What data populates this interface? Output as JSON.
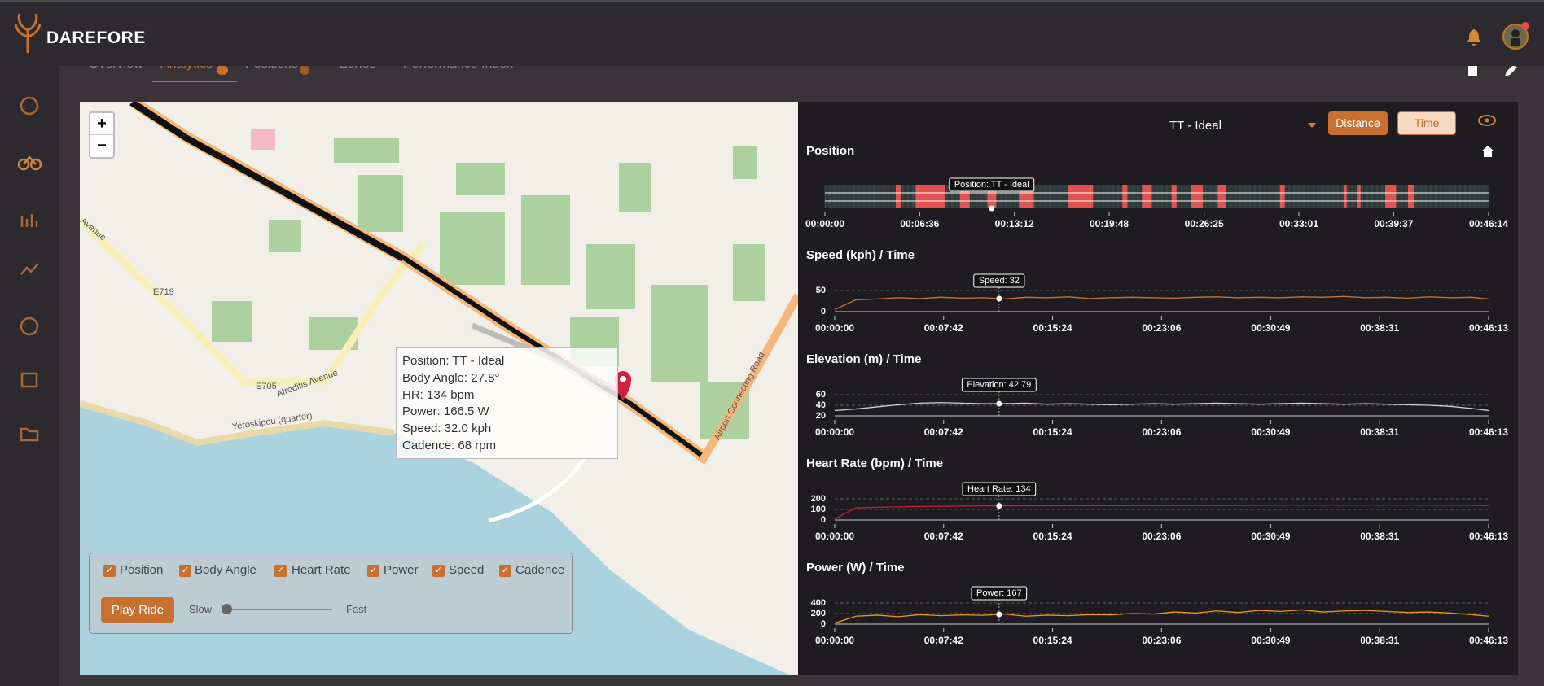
{
  "header": {
    "brand": "DAREFORE"
  },
  "tabs": [
    "Overview",
    "Analytics",
    "Positions",
    "Zones",
    "Performance Index"
  ],
  "map": {
    "zoom_in": "+",
    "zoom_out": "−",
    "labels": [
      "E719",
      "E705",
      "Afroditis Avenue",
      "Airport Connecting Road",
      "Avenue",
      "Yeroskipou (quarter)"
    ],
    "popup": [
      "Position: TT - Ideal",
      "Body Angle: 27.8°",
      "HR: 134 bpm",
      "Power: 166.5 W",
      "Speed: 32.0 kph",
      "Cadence: 68 rpm"
    ],
    "layers": [
      "Position",
      "Body Angle",
      "Heart Rate",
      "Power",
      "Speed",
      "Cadence"
    ],
    "play_button": "Play Ride",
    "speed_min": "Slow",
    "speed_max": "Fast"
  },
  "controls": {
    "dropdown": "TT - Ideal",
    "buttons": [
      "Distance",
      "Time"
    ]
  },
  "chart_data": [
    {
      "type": "timeline",
      "title": "Position",
      "color": "#e35252",
      "tooltip": "Position: TT - Ideal",
      "cursor": 697,
      "xlim": [
        0,
        2774
      ],
      "xticks": [
        {
          "value": 0,
          "label": "00:00:00"
        },
        {
          "value": 396,
          "label": "00:06:36"
        },
        {
          "value": 792,
          "label": "00:13:12"
        },
        {
          "value": 1188,
          "label": "00:19:48"
        },
        {
          "value": 1585,
          "label": "00:26:25"
        },
        {
          "value": 1981,
          "label": "00:33:01"
        },
        {
          "value": 2377,
          "label": "00:39:37"
        },
        {
          "value": 2774,
          "label": "00:46:14"
        }
      ],
      "intervals": [
        [
          296,
          317
        ],
        [
          379,
          502
        ],
        [
          564,
          605
        ],
        [
          679,
          716
        ],
        [
          811,
          873
        ],
        [
          1017,
          1120
        ],
        [
          1243,
          1264
        ],
        [
          1325,
          1366
        ],
        [
          1449,
          1469
        ],
        [
          1531,
          1580
        ],
        [
          1642,
          1675
        ],
        [
          1902,
          1922
        ],
        [
          2169,
          2181
        ],
        [
          2223,
          2239
        ],
        [
          2342,
          2387
        ],
        [
          2437,
          2461
        ]
      ]
    },
    {
      "type": "line",
      "title": "Speed (kph) / Time",
      "tooltip": "Speed: 32",
      "cursor": 697,
      "xlim": [
        0,
        2773
      ],
      "ylim": [
        0,
        50
      ],
      "yticks": [
        0,
        50
      ],
      "grid": true,
      "xticks": [
        {
          "value": 0,
          "label": "00:00:00"
        },
        {
          "value": 462,
          "label": "00:07:42"
        },
        {
          "value": 924,
          "label": "00:15:24"
        },
        {
          "value": 1386,
          "label": "00:23:06"
        },
        {
          "value": 1849,
          "label": "00:30:49"
        },
        {
          "value": 2311,
          "label": "00:38:31"
        },
        {
          "value": 2773,
          "label": "00:46:13"
        }
      ],
      "x": [
        0,
        90,
        180,
        270,
        360,
        450,
        540,
        630,
        720,
        810,
        900,
        990,
        1080,
        1170,
        1260,
        1350,
        1440,
        1530,
        1620,
        1710,
        1800,
        1890,
        1980,
        2070,
        2160,
        2250,
        2340,
        2430,
        2520,
        2610,
        2700,
        2773
      ],
      "series": [
        {
          "color": "#c8763a",
          "values": [
            5,
            28,
            30,
            33,
            31,
            34,
            32,
            33,
            30,
            34,
            33,
            35,
            31,
            33,
            34,
            33,
            32,
            34,
            35,
            33,
            34,
            33,
            35,
            34,
            36,
            33,
            34,
            32,
            35,
            33,
            34,
            30
          ]
        }
      ]
    },
    {
      "type": "line",
      "title": "Elevation (m) / Time",
      "tooltip": "Elevation: 42.79",
      "cursor": 697,
      "xlim": [
        0,
        2773
      ],
      "ylim": [
        20,
        60
      ],
      "yticks": [
        20,
        40,
        60
      ],
      "grid": true,
      "xticks": [
        {
          "value": 0,
          "label": "00:00:00"
        },
        {
          "value": 462,
          "label": "00:07:42"
        },
        {
          "value": 924,
          "label": "00:15:24"
        },
        {
          "value": 1386,
          "label": "00:23:06"
        },
        {
          "value": 1849,
          "label": "00:30:49"
        },
        {
          "value": 2311,
          "label": "00:38:31"
        },
        {
          "value": 2773,
          "label": "00:46:13"
        }
      ],
      "x": [
        0,
        90,
        180,
        270,
        360,
        450,
        540,
        630,
        720,
        810,
        900,
        990,
        1080,
        1170,
        1260,
        1350,
        1440,
        1530,
        1620,
        1710,
        1800,
        1890,
        1980,
        2070,
        2160,
        2250,
        2340,
        2430,
        2520,
        2610,
        2700,
        2773
      ],
      "series": [
        {
          "color": "#d0d0d0",
          "values": [
            30,
            33,
            37,
            41,
            44,
            45,
            44,
            43,
            43,
            44,
            42,
            43,
            42,
            41,
            42,
            43,
            42,
            43,
            44,
            43,
            42,
            43,
            44,
            43,
            42,
            43,
            42,
            41,
            40,
            38,
            34,
            30
          ]
        }
      ]
    },
    {
      "type": "line",
      "title": "Heart Rate (bpm) / Time",
      "tooltip": "Heart Rate: 134",
      "cursor": 697,
      "xlim": [
        0,
        2773
      ],
      "ylim": [
        0,
        200
      ],
      "yticks": [
        0,
        100,
        200
      ],
      "grid": true,
      "xticks": [
        {
          "value": 0,
          "label": "00:00:00"
        },
        {
          "value": 462,
          "label": "00:07:42"
        },
        {
          "value": 924,
          "label": "00:15:24"
        },
        {
          "value": 1386,
          "label": "00:23:06"
        },
        {
          "value": 1849,
          "label": "00:30:49"
        },
        {
          "value": 2311,
          "label": "00:38:31"
        },
        {
          "value": 2773,
          "label": "00:46:13"
        }
      ],
      "x": [
        0,
        90,
        180,
        270,
        360,
        450,
        540,
        630,
        720,
        810,
        900,
        990,
        1080,
        1170,
        1260,
        1350,
        1440,
        1530,
        1620,
        1710,
        1800,
        1890,
        1980,
        2070,
        2160,
        2250,
        2340,
        2430,
        2520,
        2610,
        2700,
        2773
      ],
      "series": [
        {
          "color": "#c8203c",
          "values": [
            10,
            115,
            120,
            124,
            128,
            130,
            132,
            133,
            134,
            134,
            135,
            135,
            136,
            136,
            137,
            137,
            138,
            138,
            138,
            139,
            139,
            140,
            140,
            140,
            140,
            141,
            141,
            141,
            140,
            140,
            139,
            138
          ]
        }
      ]
    },
    {
      "type": "line",
      "title": "Power (W) / Time",
      "tooltip": "Power: 167",
      "cursor": 697,
      "xlim": [
        0,
        2773
      ],
      "ylim": [
        0,
        400
      ],
      "yticks": [
        0,
        200,
        400
      ],
      "grid": true,
      "xticks": [
        {
          "value": 0,
          "label": "00:00:00"
        },
        {
          "value": 462,
          "label": "00:07:42"
        },
        {
          "value": 924,
          "label": "00:15:24"
        },
        {
          "value": 1386,
          "label": "00:23:06"
        },
        {
          "value": 1849,
          "label": "00:30:49"
        },
        {
          "value": 2311,
          "label": "00:38:31"
        },
        {
          "value": 2773,
          "label": "00:46:13"
        }
      ],
      "x": [
        0,
        90,
        180,
        270,
        360,
        450,
        540,
        630,
        720,
        810,
        900,
        990,
        1080,
        1170,
        1260,
        1350,
        1440,
        1530,
        1620,
        1710,
        1800,
        1890,
        1980,
        2070,
        2160,
        2250,
        2340,
        2430,
        2520,
        2610,
        2700,
        2773
      ],
      "series": [
        {
          "color": "#e89a1c",
          "values": [
            20,
            150,
            170,
            140,
            180,
            160,
            175,
            167,
            190,
            150,
            170,
            160,
            180,
            175,
            200,
            190,
            230,
            210,
            250,
            220,
            260,
            240,
            270,
            230,
            250,
            260,
            240,
            220,
            230,
            210,
            180,
            150
          ]
        }
      ]
    }
  ]
}
